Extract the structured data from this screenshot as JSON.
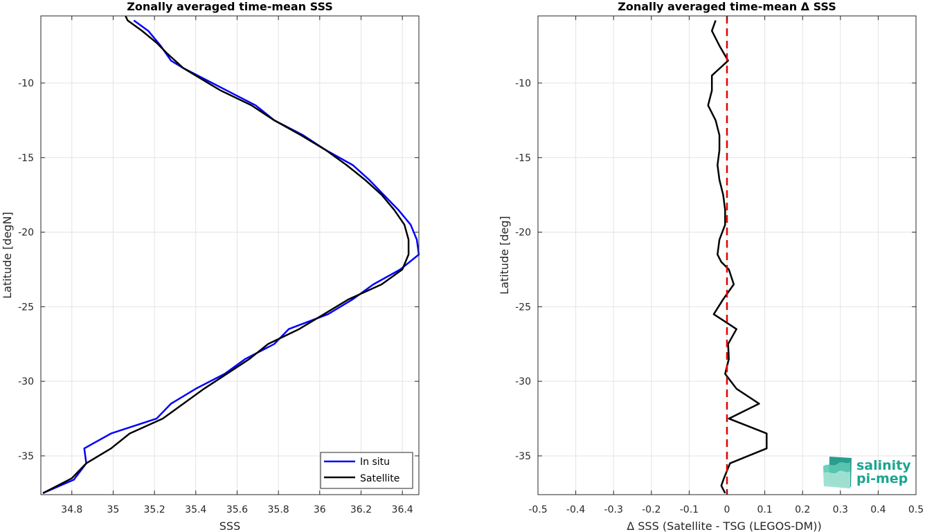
{
  "chart_data": [
    {
      "type": "line",
      "title": "Zonally averaged time-mean SSS",
      "xlabel": "SSS",
      "ylabel": "Latitude [degN]",
      "xlim": [
        34.65,
        36.48
      ],
      "ylim": [
        -37.6,
        -5.5
      ],
      "xticks": [
        34.8,
        35.0,
        35.2,
        35.4,
        35.6,
        35.8,
        36.0,
        36.2,
        36.4
      ],
      "xtick_labels": [
        "34.8",
        "35",
        "35.2",
        "35.4",
        "35.6",
        "35.8",
        "36",
        "36.2",
        "36.4"
      ],
      "yticks": [
        -10,
        -15,
        -20,
        -25,
        -30,
        -35
      ],
      "ytick_labels": [
        "-10",
        "-15",
        "-20",
        "-25",
        "-30",
        "-35"
      ],
      "grid": true,
      "legend_position": "bottom-right",
      "series": [
        {
          "name": "In situ",
          "color": "#0000ff",
          "points": [
            [
              35.1,
              -5.8
            ],
            [
              35.17,
              -6.5
            ],
            [
              35.23,
              -7.5
            ],
            [
              35.28,
              -8.5
            ],
            [
              35.34,
              -9.0
            ],
            [
              35.55,
              -10.5
            ],
            [
              35.69,
              -11.5
            ],
            [
              35.78,
              -12.5
            ],
            [
              35.92,
              -13.5
            ],
            [
              36.03,
              -14.5
            ],
            [
              36.16,
              -15.5
            ],
            [
              36.24,
              -16.5
            ],
            [
              36.31,
              -17.5
            ],
            [
              36.38,
              -18.5
            ],
            [
              36.44,
              -19.5
            ],
            [
              36.47,
              -20.5
            ],
            [
              36.48,
              -21.5
            ],
            [
              36.39,
              -22.5
            ],
            [
              36.26,
              -23.5
            ],
            [
              36.16,
              -24.5
            ],
            [
              36.04,
              -25.5
            ],
            [
              35.85,
              -26.5
            ],
            [
              35.78,
              -27.5
            ],
            [
              35.64,
              -28.5
            ],
            [
              35.54,
              -29.5
            ],
            [
              35.4,
              -30.5
            ],
            [
              35.28,
              -31.5
            ],
            [
              35.21,
              -32.5
            ],
            [
              34.99,
              -33.5
            ],
            [
              34.86,
              -34.5
            ],
            [
              34.87,
              -35.5
            ],
            [
              34.81,
              -36.6
            ],
            [
              34.66,
              -37.5
            ]
          ]
        },
        {
          "name": "Satellite",
          "color": "#000000",
          "points": [
            [
              35.06,
              -5.5
            ],
            [
              35.07,
              -5.8
            ],
            [
              35.14,
              -6.5
            ],
            [
              35.21,
              -7.3
            ],
            [
              35.26,
              -8.0
            ],
            [
              35.34,
              -9.0
            ],
            [
              35.52,
              -10.5
            ],
            [
              35.67,
              -11.5
            ],
            [
              35.78,
              -12.5
            ],
            [
              35.91,
              -13.5
            ],
            [
              36.03,
              -14.5
            ],
            [
              36.13,
              -15.5
            ],
            [
              36.22,
              -16.5
            ],
            [
              36.3,
              -17.5
            ],
            [
              36.36,
              -18.5
            ],
            [
              36.41,
              -19.5
            ],
            [
              36.43,
              -20.5
            ],
            [
              36.43,
              -21.5
            ],
            [
              36.4,
              -22.5
            ],
            [
              36.3,
              -23.5
            ],
            [
              36.14,
              -24.5
            ],
            [
              36.02,
              -25.5
            ],
            [
              35.9,
              -26.5
            ],
            [
              35.75,
              -27.5
            ],
            [
              35.66,
              -28.5
            ],
            [
              35.55,
              -29.5
            ],
            [
              35.44,
              -30.5
            ],
            [
              35.34,
              -31.5
            ],
            [
              35.24,
              -32.5
            ],
            [
              35.08,
              -33.5
            ],
            [
              34.99,
              -34.5
            ],
            [
              34.87,
              -35.5
            ],
            [
              34.8,
              -36.5
            ],
            [
              34.66,
              -37.5
            ]
          ]
        }
      ]
    },
    {
      "type": "line",
      "title": "Zonally averaged time-mean Δ SSS",
      "xlabel": "Δ SSS (Satellite - TSG (LEGOS-DM))",
      "ylabel": "Latitude [deg]",
      "xlim": [
        -0.5,
        0.5
      ],
      "ylim": [
        -37.6,
        -5.5
      ],
      "xticks": [
        -0.5,
        -0.4,
        -0.3,
        -0.2,
        -0.1,
        0,
        0.1,
        0.2,
        0.3,
        0.4,
        0.5
      ],
      "xtick_labels": [
        "-0.5",
        "-0.4",
        "-0.3",
        "-0.2",
        "-0.1",
        "0",
        "0.1",
        "0.2",
        "0.3",
        "0.4",
        "0.5"
      ],
      "yticks": [
        -10,
        -15,
        -20,
        -25,
        -30,
        -35
      ],
      "ytick_labels": [
        "-10",
        "-15",
        "-20",
        "-25",
        "-30",
        "-35"
      ],
      "grid": true,
      "reference_line": {
        "x": 0,
        "color": "#e00000",
        "style": "dashed"
      },
      "series": [
        {
          "color": "#000000",
          "points": [
            [
              -0.03,
              -5.8
            ],
            [
              -0.04,
              -6.5
            ],
            [
              -0.02,
              -7.5
            ],
            [
              0.003,
              -8.5
            ],
            [
              -0.04,
              -9.5
            ],
            [
              -0.04,
              -10.5
            ],
            [
              -0.05,
              -11.5
            ],
            [
              -0.03,
              -12.5
            ],
            [
              -0.02,
              -13.5
            ],
            [
              -0.02,
              -14.5
            ],
            [
              -0.025,
              -15.5
            ],
            [
              -0.02,
              -16.5
            ],
            [
              -0.01,
              -17.5
            ],
            [
              -0.005,
              -18.5
            ],
            [
              -0.005,
              -19.5
            ],
            [
              -0.02,
              -20.5
            ],
            [
              -0.025,
              -21.5
            ],
            [
              -0.015,
              -22.0
            ],
            [
              0.005,
              -22.5
            ],
            [
              0.018,
              -23.5
            ],
            [
              -0.01,
              -24.5
            ],
            [
              -0.035,
              -25.5
            ],
            [
              0.025,
              -26.5
            ],
            [
              0.003,
              -27.5
            ],
            [
              0.005,
              -28.5
            ],
            [
              -0.005,
              -29.5
            ],
            [
              0.025,
              -30.5
            ],
            [
              0.085,
              -31.5
            ],
            [
              0.005,
              -32.5
            ],
            [
              0.105,
              -33.5
            ],
            [
              0.105,
              -34.5
            ],
            [
              0.008,
              -35.5
            ],
            [
              -0.008,
              -36.5
            ],
            [
              -0.015,
              -37.0
            ],
            [
              -0.005,
              -37.5
            ]
          ]
        }
      ]
    }
  ],
  "logo": {
    "line1": "salinity",
    "line2": "pi-mep"
  }
}
